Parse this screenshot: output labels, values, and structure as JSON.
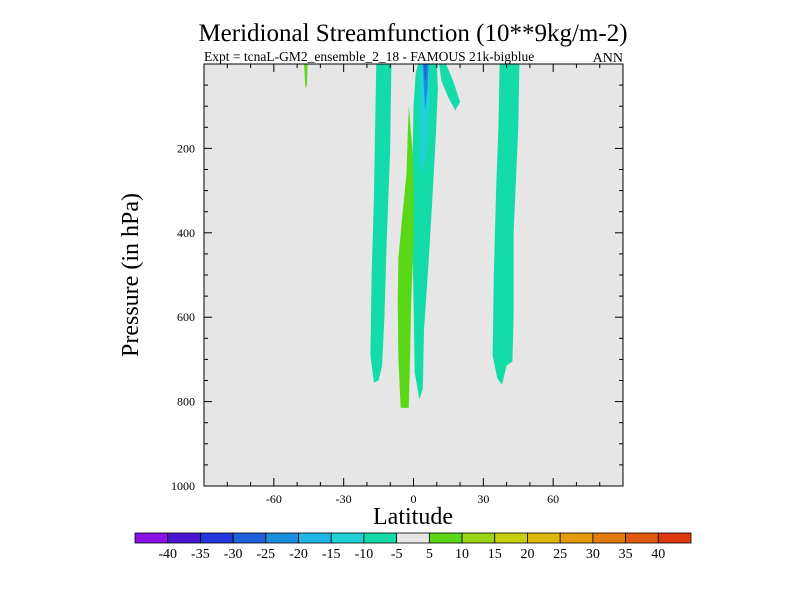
{
  "chart_data": {
    "type": "contour",
    "title": "Meridional Streamfunction (10**9kg/m-2)",
    "subtitle_left": "Expt = tcnaL-GM2_ensemble_2_18 - FAMOUS 21k-bigblue",
    "subtitle_right": "ANN",
    "xlabel": "Latitude",
    "ylabel": "Pressure (in hPa)",
    "xlim": [
      -90,
      90
    ],
    "ylim": [
      1000,
      0
    ],
    "x_ticks": [
      -60,
      -30,
      0,
      30,
      60
    ],
    "x_tick_labels": [
      "-60",
      "-30",
      "0",
      "30",
      "60"
    ],
    "y_ticks": [
      200,
      400,
      600,
      800,
      1000
    ],
    "y_tick_labels": [
      "200",
      "400",
      "600",
      "800",
      "1000"
    ],
    "background_color": "#e6e6e6",
    "colorbar": {
      "levels": [
        -40,
        -35,
        -30,
        -25,
        -20,
        -15,
        -10,
        -5,
        5,
        10,
        15,
        20,
        25,
        30,
        35,
        40
      ],
      "level_labels": [
        "-40",
        "-35",
        "-30",
        "-25",
        "-20",
        "-15",
        "-10",
        "-5",
        "5",
        "10",
        "15",
        "20",
        "25",
        "30",
        "35",
        "40"
      ],
      "colors": [
        "#8a12e6",
        "#4a14d2",
        "#2636de",
        "#1f62dc",
        "#1a8fe0",
        "#1eb6e6",
        "#1ed2d6",
        "#14dca8",
        "#e6e6e6",
        "#5ad818",
        "#9ad614",
        "#c8d00e",
        "#e0b80c",
        "#e69a0a",
        "#e27a0c",
        "#e05a0e",
        "#de3a0e"
      ]
    },
    "regions": [
      {
        "name": "cell-northern-teal",
        "color": "#14dca8",
        "points": [
          [
            45.5,
            0
          ],
          [
            45,
            150
          ],
          [
            43,
            400
          ],
          [
            43,
            600
          ],
          [
            42.5,
            705
          ],
          [
            40,
            715
          ],
          [
            38,
            760
          ],
          [
            36,
            745
          ],
          [
            34,
            690
          ],
          [
            34.5,
            500
          ],
          [
            35.5,
            300
          ],
          [
            36.5,
            140
          ],
          [
            37,
            0
          ]
        ]
      },
      {
        "name": "cell-southern-teal",
        "color": "#14dca8",
        "points": [
          [
            -9.5,
            0
          ],
          [
            -10,
            200
          ],
          [
            -11.5,
            420
          ],
          [
            -12.5,
            600
          ],
          [
            -13.5,
            715
          ],
          [
            -15,
            750
          ],
          [
            -17,
            755
          ],
          [
            -18.5,
            690
          ],
          [
            -18,
            500
          ],
          [
            -17,
            320
          ],
          [
            -16.5,
            150
          ],
          [
            -16,
            0
          ]
        ]
      },
      {
        "name": "cell-equatorial-teal",
        "color": "#14dca8",
        "points": [
          [
            2,
            0
          ],
          [
            10,
            0
          ],
          [
            10.5,
            60
          ],
          [
            9.5,
            180
          ],
          [
            8,
            330
          ],
          [
            6.5,
            470
          ],
          [
            4.5,
            630
          ],
          [
            4,
            770
          ],
          [
            2.5,
            795
          ],
          [
            0.5,
            730
          ],
          [
            0,
            560
          ],
          [
            -0.5,
            400
          ],
          [
            -0.5,
            250
          ],
          [
            0,
            100
          ],
          [
            1,
            20
          ]
        ]
      },
      {
        "name": "cell-ridge-teal",
        "color": "#14dca8",
        "points": [
          [
            11,
            0
          ],
          [
            14,
            0
          ],
          [
            17,
            40
          ],
          [
            20,
            90
          ],
          [
            18,
            110
          ],
          [
            15,
            80
          ],
          [
            12,
            40
          ]
        ]
      },
      {
        "name": "cell-equatorial-cyan",
        "color": "#1ed2d6",
        "points": [
          [
            3,
            0
          ],
          [
            7,
            0
          ],
          [
            7,
            90
          ],
          [
            5.5,
            220
          ],
          [
            4,
            260
          ],
          [
            3,
            230
          ],
          [
            2.5,
            120
          ]
        ]
      },
      {
        "name": "cell-equatorial-skyblue",
        "color": "#1a8fe0",
        "points": [
          [
            4,
            0
          ],
          [
            6.5,
            0
          ],
          [
            6,
            60
          ],
          [
            5,
            110
          ],
          [
            4.5,
            60
          ]
        ]
      },
      {
        "name": "cell-equatorial-blue",
        "color": "#1f62dc",
        "points": [
          [
            4.5,
            0
          ],
          [
            5.8,
            0
          ],
          [
            5.4,
            35
          ],
          [
            4.8,
            40
          ]
        ]
      },
      {
        "name": "cell-equatorial-green",
        "color": "#5ad818",
        "points": [
          [
            -2,
            100
          ],
          [
            -0.5,
            200
          ],
          [
            0,
            300
          ],
          [
            0,
            430
          ],
          [
            -1,
            560
          ],
          [
            -1.5,
            700
          ],
          [
            -2,
            815
          ],
          [
            -5.5,
            815
          ],
          [
            -6.5,
            700
          ],
          [
            -6.8,
            560
          ],
          [
            -6.5,
            460
          ],
          [
            -5,
            370
          ],
          [
            -3,
            260
          ],
          [
            -2.5,
            170
          ]
        ]
      },
      {
        "name": "cell-small-green",
        "color": "#5ad818",
        "points": [
          [
            -47,
            0
          ],
          [
            -45.5,
            0
          ],
          [
            -45.8,
            50
          ],
          [
            -46.3,
            60
          ],
          [
            -46.6,
            40
          ]
        ]
      }
    ]
  }
}
